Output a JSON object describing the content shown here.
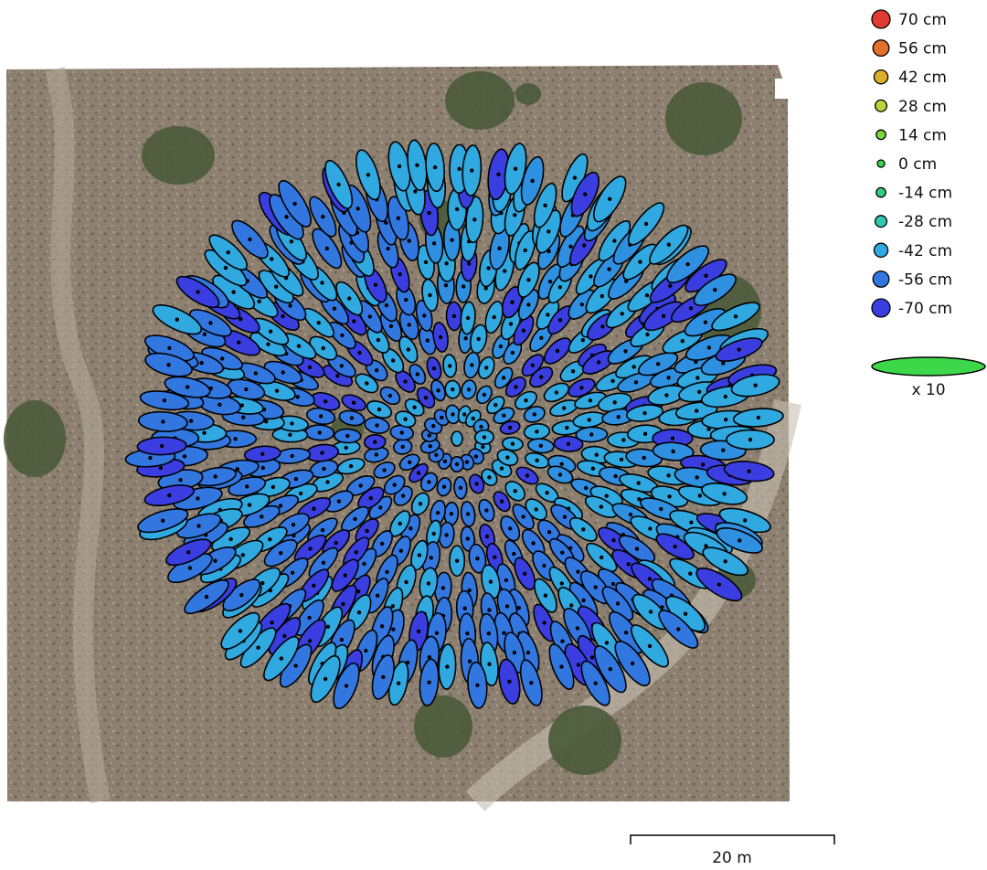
{
  "chart_data": {
    "type": "scatter",
    "description_visible": false,
    "background": "orthophoto",
    "legend": {
      "placement": "top-right",
      "entries": [
        {
          "label": "70 cm",
          "value": 70,
          "color": "#e03a32"
        },
        {
          "label": "56 cm",
          "value": 56,
          "color": "#e0702c"
        },
        {
          "label": "42 cm",
          "value": 42,
          "color": "#dcae2a"
        },
        {
          "label": "28 cm",
          "value": 28,
          "color": "#bcd23a"
        },
        {
          "label": "14 cm",
          "value": 14,
          "color": "#7cd83c"
        },
        {
          "label": "0 cm",
          "value": 0,
          "color": "#3cd84a"
        },
        {
          "label": "-14 cm",
          "value": -14,
          "color": "#34cf7a"
        },
        {
          "label": "-28 cm",
          "value": -28,
          "color": "#30c8b0"
        },
        {
          "label": "-42 cm",
          "value": -42,
          "color": "#30a8e0"
        },
        {
          "label": "-56 cm",
          "value": -56,
          "color": "#3277e0"
        },
        {
          "label": "-70 cm",
          "value": -70,
          "color": "#3a3ee0"
        }
      ]
    },
    "error_scale": {
      "label": "x 10",
      "color": "#3cd84a"
    },
    "scale_bar": {
      "label": "20 m",
      "meters": 20
    }
  }
}
